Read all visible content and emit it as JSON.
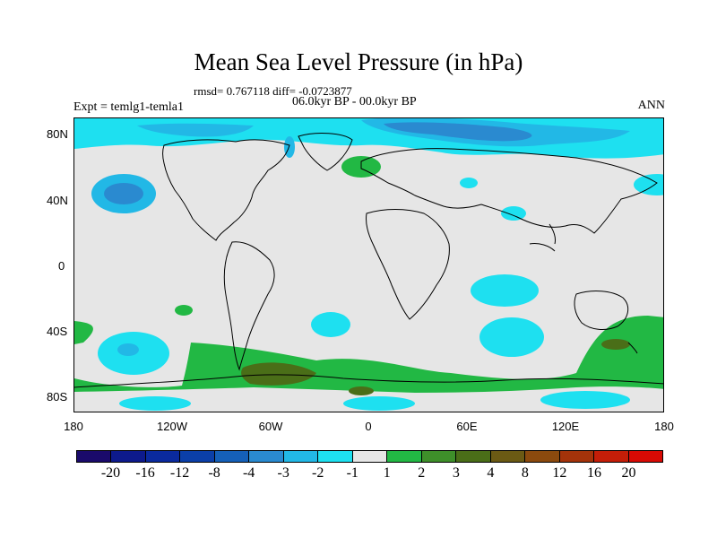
{
  "title": "Mean Sea Level Pressure (in hPa)",
  "stats": "rmsd= 0.767118 diff= -0.0723877",
  "period": "06.0kyr BP - 00.0kyr BP",
  "experiment": "Expt = temlg1-temla1",
  "season": "ANN",
  "lat_labels": [
    "80N",
    "40N",
    "0",
    "40S",
    "80S"
  ],
  "lon_labels": [
    "180",
    "120W",
    "60W",
    "0",
    "60E",
    "120E",
    "180"
  ],
  "colorbar": {
    "labels": [
      "-20",
      "-16",
      "-12",
      "-8",
      "-4",
      "-3",
      "-2",
      "-1",
      "1",
      "2",
      "3",
      "4",
      "8",
      "12",
      "16",
      "20"
    ],
    "colors": [
      "#1a0a6b",
      "#0d1a8c",
      "#0a2a9e",
      "#0b3fa8",
      "#1560b8",
      "#2a8ad0",
      "#22b8e6",
      "#1ee0f0",
      "#e6e6e6",
      "#22b844",
      "#3e8f2a",
      "#4a6e18",
      "#6b5a14",
      "#8b4a0e",
      "#a4330a",
      "#c41e08",
      "#d80a04"
    ]
  },
  "map": {
    "background_color": "#e6e6e6",
    "coastline_color": "#000000"
  }
}
